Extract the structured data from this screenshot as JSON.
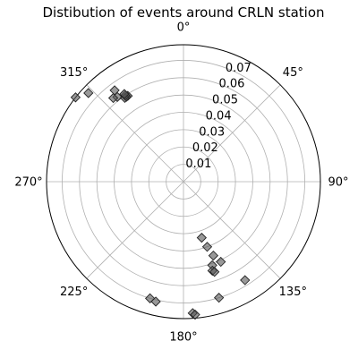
{
  "chart_data": {
    "type": "scatter",
    "projection": "polar",
    "title": "Distibution of events around CRLN station",
    "theta_zero_location": "N",
    "theta_direction": "clockwise",
    "theta_tick_labels": [
      "0°",
      "45°",
      "90°",
      "135°",
      "180°",
      "225°",
      "270°",
      "315°"
    ],
    "theta_ticks_deg": [
      0,
      45,
      90,
      135,
      180,
      225,
      270,
      315
    ],
    "r_ticks": [
      0.01,
      0.02,
      0.03,
      0.04,
      0.05,
      0.06,
      0.07
    ],
    "r_tick_labels": [
      "0.01",
      "0.02",
      "0.03",
      "0.04",
      "0.05",
      "0.06",
      "0.07"
    ],
    "rlim": [
      0,
      0.079
    ],
    "r_label_angle_deg": 22.5,
    "grid": true,
    "marker": "diamond",
    "marker_color": "#555555",
    "points": [
      {
        "theta": 162,
        "r": 0.034
      },
      {
        "theta": 160,
        "r": 0.04
      },
      {
        "theta": 158,
        "r": 0.046
      },
      {
        "theta": 161,
        "r": 0.051
      },
      {
        "theta": 162,
        "r": 0.054
      },
      {
        "theta": 161,
        "r": 0.055
      },
      {
        "theta": 155,
        "r": 0.051
      },
      {
        "theta": 148,
        "r": 0.067
      },
      {
        "theta": 163,
        "r": 0.07
      },
      {
        "theta": 176,
        "r": 0.076
      },
      {
        "theta": 175,
        "r": 0.077
      },
      {
        "theta": 196,
        "r": 0.07
      },
      {
        "theta": 193,
        "r": 0.071
      },
      {
        "theta": 322,
        "r": 0.062
      },
      {
        "theta": 320,
        "r": 0.063
      },
      {
        "theta": 323,
        "r": 0.066
      },
      {
        "theta": 327,
        "r": 0.059
      },
      {
        "theta": 326,
        "r": 0.059
      },
      {
        "theta": 325,
        "r": 0.059
      },
      {
        "theta": 326,
        "r": 0.06
      },
      {
        "theta": 326,
        "r": 0.061
      },
      {
        "theta": 313,
        "r": 0.075
      },
      {
        "theta": 308,
        "r": 0.079
      }
    ]
  }
}
